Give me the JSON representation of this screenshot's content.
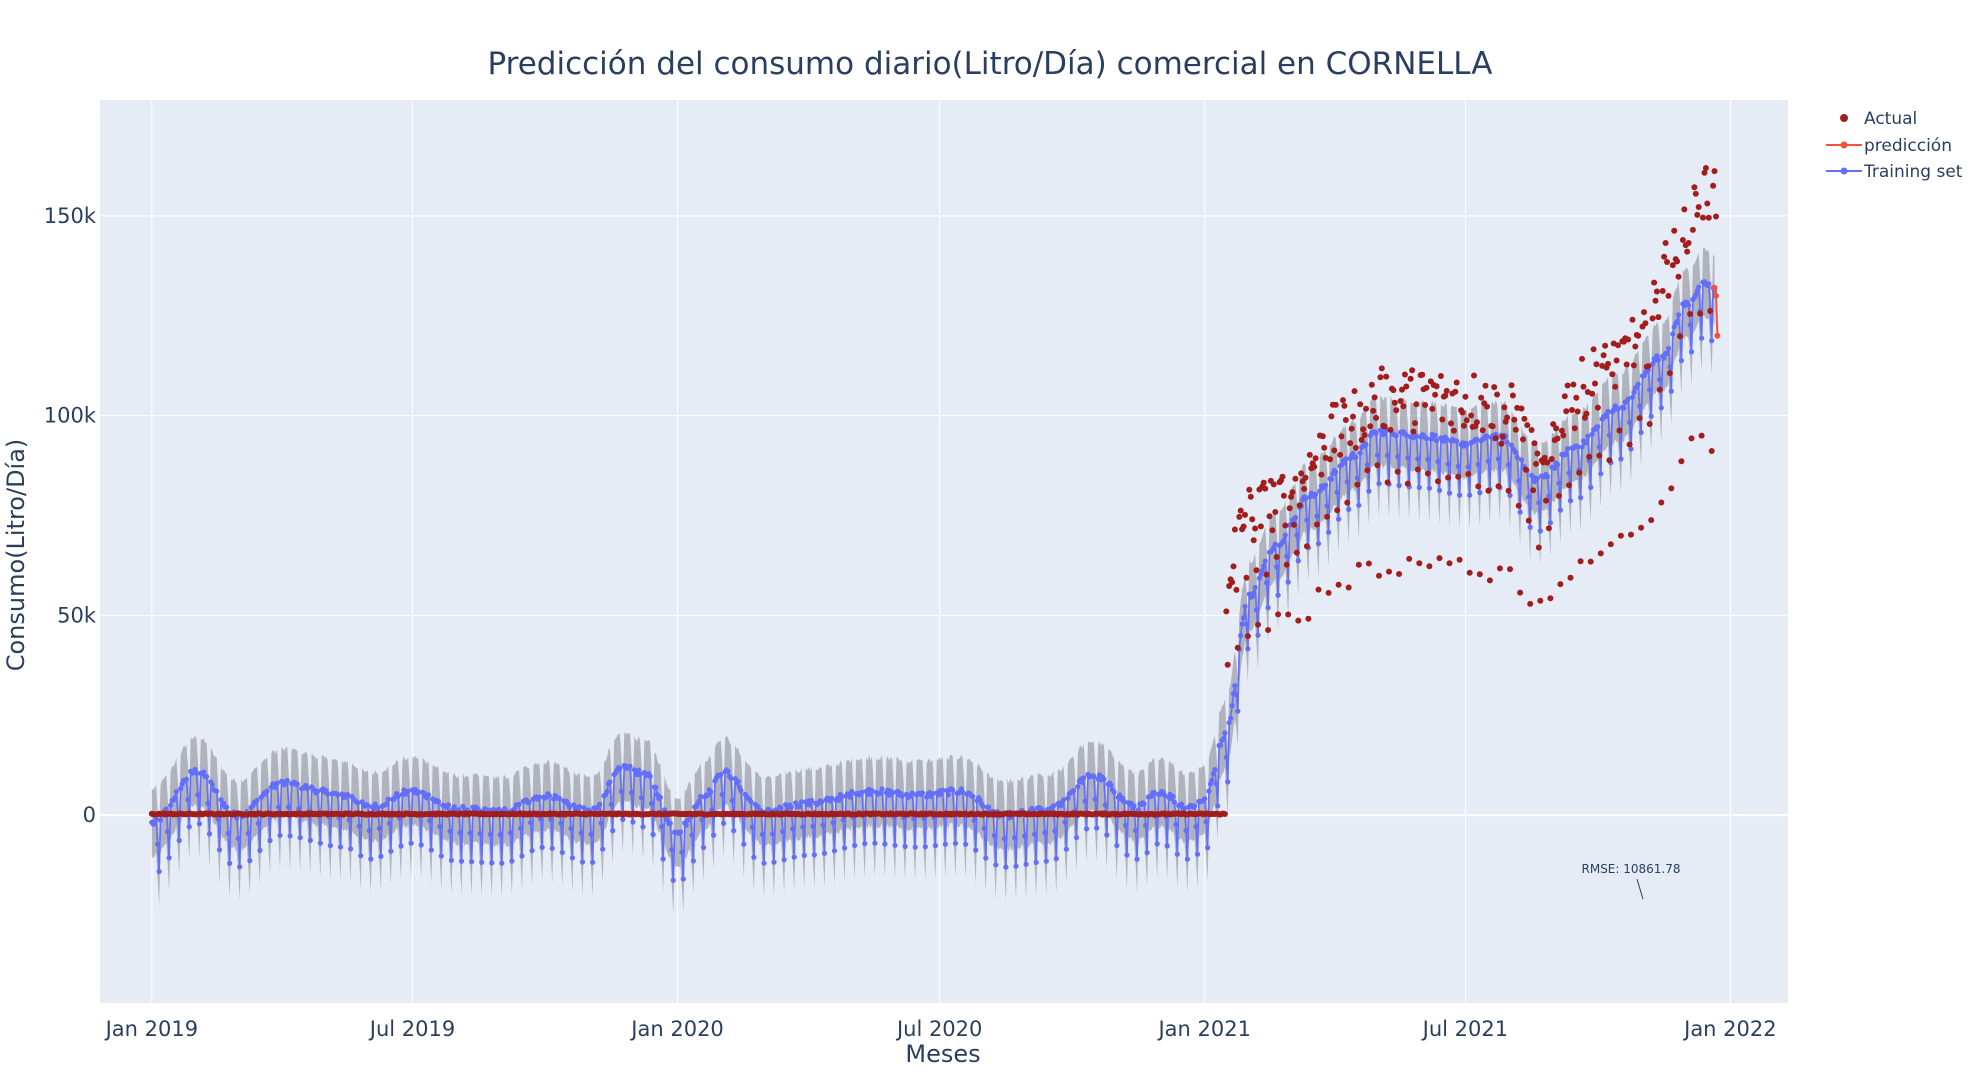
{
  "chart_data": {
    "type": "scatter",
    "title": "Predicción del consumo diario(Litro/Día) comercial en CORNELLA",
    "xlabel": "Meses",
    "ylabel": "Consumo(Litro/Día)",
    "x_ticks": [
      "2019-01-01",
      "2019-07-01",
      "2020-01-01",
      "2020-07-01",
      "2021-01-01",
      "2021-07-01",
      "2022-01-01"
    ],
    "x_tick_labels": [
      "Jan 2019",
      "Jul 2019",
      "Jan 2020",
      "Jul 2020",
      "Jan 2021",
      "Jul 2021",
      "Jan 2022"
    ],
    "y_ticks": [
      0,
      50000,
      100000,
      150000
    ],
    "y_tick_labels": [
      "0",
      "50k",
      "100k",
      "150k"
    ],
    "xlim": [
      "2018-11-26",
      "2022-02-10"
    ],
    "ylim": [
      -47000,
      179000
    ],
    "grid": true,
    "legend_position": "top-right",
    "colors": {
      "actual": "#a31d1d",
      "prediccion": "#ef553b",
      "training": "#636efa",
      "band": "#9ea0a8",
      "plot_bg": "#e5ecf6",
      "grid": "#ffffff",
      "text": "#2a3f5f"
    },
    "series": [
      {
        "name": "Actual",
        "mode": "markers",
        "anchors": [
          [
            "2019-01-01",
            300
          ],
          [
            "2020-01-01",
            300
          ],
          [
            "2021-01-15",
            300
          ],
          [
            "2021-01-16",
            62000
          ],
          [
            "2021-02-01",
            75000
          ],
          [
            "2021-03-01",
            80000
          ],
          [
            "2021-04-01",
            95000
          ],
          [
            "2021-05-01",
            104000
          ],
          [
            "2021-07-01",
            104000
          ],
          [
            "2021-08-01",
            100000
          ],
          [
            "2021-08-25",
            84000
          ],
          [
            "2021-09-10",
            103000
          ],
          [
            "2021-10-01",
            110000
          ],
          [
            "2021-11-01",
            118000
          ],
          [
            "2021-11-20",
            138000
          ],
          [
            "2021-12-10",
            155000
          ],
          [
            "2021-12-22",
            156000
          ]
        ],
        "note": "Approximately zero from Jan 2019 to mid-Jan 2021; afterwards daily values mostly between 48k and 167k with weekend dips to about 48k–65k."
      },
      {
        "name": "predicción",
        "mode": "lines+markers",
        "x": [
          "2021-12-21",
          "2021-12-22",
          "2021-12-23"
        ],
        "values": [
          132000,
          130000,
          120000
        ]
      },
      {
        "name": "Training set",
        "mode": "lines+markers",
        "weekly_low_offset": -13000,
        "uncertainty_band": 8500,
        "trend_anchors": [
          [
            "2019-01-01",
            -2000
          ],
          [
            "2019-02-01",
            11000
          ],
          [
            "2019-03-01",
            0
          ],
          [
            "2019-04-01",
            8000
          ],
          [
            "2019-05-15",
            5000
          ],
          [
            "2019-06-01",
            2000
          ],
          [
            "2019-07-01",
            6000
          ],
          [
            "2019-08-01",
            1500
          ],
          [
            "2019-09-01",
            1000
          ],
          [
            "2019-10-01",
            5000
          ],
          [
            "2019-11-01",
            1000
          ],
          [
            "2019-11-25",
            12000
          ],
          [
            "2019-12-10",
            10000
          ],
          [
            "2020-01-01",
            -4000
          ],
          [
            "2020-01-20",
            5000
          ],
          [
            "2020-02-01",
            11000
          ],
          [
            "2020-03-01",
            1000
          ],
          [
            "2020-04-01",
            3000
          ],
          [
            "2020-05-15",
            6000
          ],
          [
            "2020-06-15",
            5000
          ],
          [
            "2020-07-15",
            6000
          ],
          [
            "2020-08-15",
            0
          ],
          [
            "2020-09-15",
            1500
          ],
          [
            "2020-10-15",
            10000
          ],
          [
            "2020-11-15",
            2000
          ],
          [
            "2020-12-01",
            6000
          ],
          [
            "2020-12-20",
            2000
          ],
          [
            "2021-01-01",
            4000
          ],
          [
            "2021-01-15",
            20000
          ],
          [
            "2021-02-01",
            55000
          ],
          [
            "2021-02-20",
            68000
          ],
          [
            "2021-03-15",
            80000
          ],
          [
            "2021-04-15",
            90000
          ],
          [
            "2021-05-01",
            96000
          ],
          [
            "2021-06-01",
            95000
          ],
          [
            "2021-07-01",
            93000
          ],
          [
            "2021-07-25",
            95000
          ],
          [
            "2021-08-20",
            84000
          ],
          [
            "2021-09-15",
            92000
          ],
          [
            "2021-10-15",
            102000
          ],
          [
            "2021-11-15",
            115000
          ],
          [
            "2021-12-01",
            128000
          ],
          [
            "2021-12-15",
            133000
          ],
          [
            "2021-12-22",
            131000
          ]
        ]
      }
    ],
    "annotations": [
      {
        "text": "RMSE: 10861.78",
        "x": "2021-10-24",
        "y": -20000
      }
    ]
  }
}
